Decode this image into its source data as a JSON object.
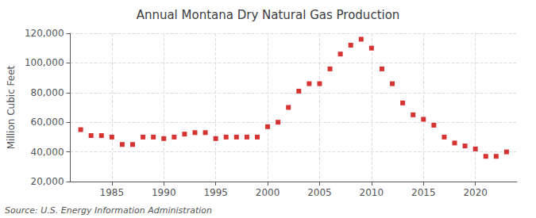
{
  "chart_data": {
    "type": "scatter",
    "title": "Annual Montana Dry Natural Gas Production",
    "y_label": "Million Cubic Feet",
    "annotations": [
      "Source: U.S. Energy Information Administration"
    ],
    "x": [
      1982,
      1983,
      1984,
      1985,
      1986,
      1987,
      1988,
      1989,
      1990,
      1991,
      1992,
      1993,
      1994,
      1995,
      1996,
      1997,
      1998,
      1999,
      2000,
      2001,
      2002,
      2003,
      2004,
      2005,
      2006,
      2007,
      2008,
      2009,
      2010,
      2011,
      2012,
      2013,
      2014,
      2015,
      2016,
      2017,
      2018,
      2019,
      2020,
      2021,
      2022,
      2023
    ],
    "values": [
      55000,
      51000,
      51000,
      50000,
      45000,
      45000,
      50000,
      50000,
      49000,
      50000,
      52000,
      53000,
      53000,
      49000,
      50000,
      50000,
      50000,
      50000,
      57000,
      60000,
      70000,
      81000,
      86000,
      86000,
      96000,
      106000,
      112000,
      116000,
      110000,
      96000,
      86000,
      73000,
      65000,
      62000,
      58000,
      50000,
      46000,
      44000,
      42000,
      37000,
      37000,
      40000
    ],
    "color": "#cc0000",
    "marker": "square",
    "xlim": [
      1981,
      2024
    ],
    "xticks": [
      1985,
      1990,
      1995,
      2000,
      2005,
      2010,
      2015,
      2020
    ],
    "ylim": [
      20000,
      120000
    ],
    "yticks": [
      {
        "value": 20000,
        "label": "20,000"
      },
      {
        "value": 40000,
        "label": "40,000"
      },
      {
        "value": 60000,
        "label": "60,000"
      },
      {
        "value": 80000,
        "label": "80,000"
      },
      {
        "value": 100000,
        "label": "100,000"
      },
      {
        "value": 120000,
        "label": "120,000"
      }
    ],
    "grid": true
  }
}
